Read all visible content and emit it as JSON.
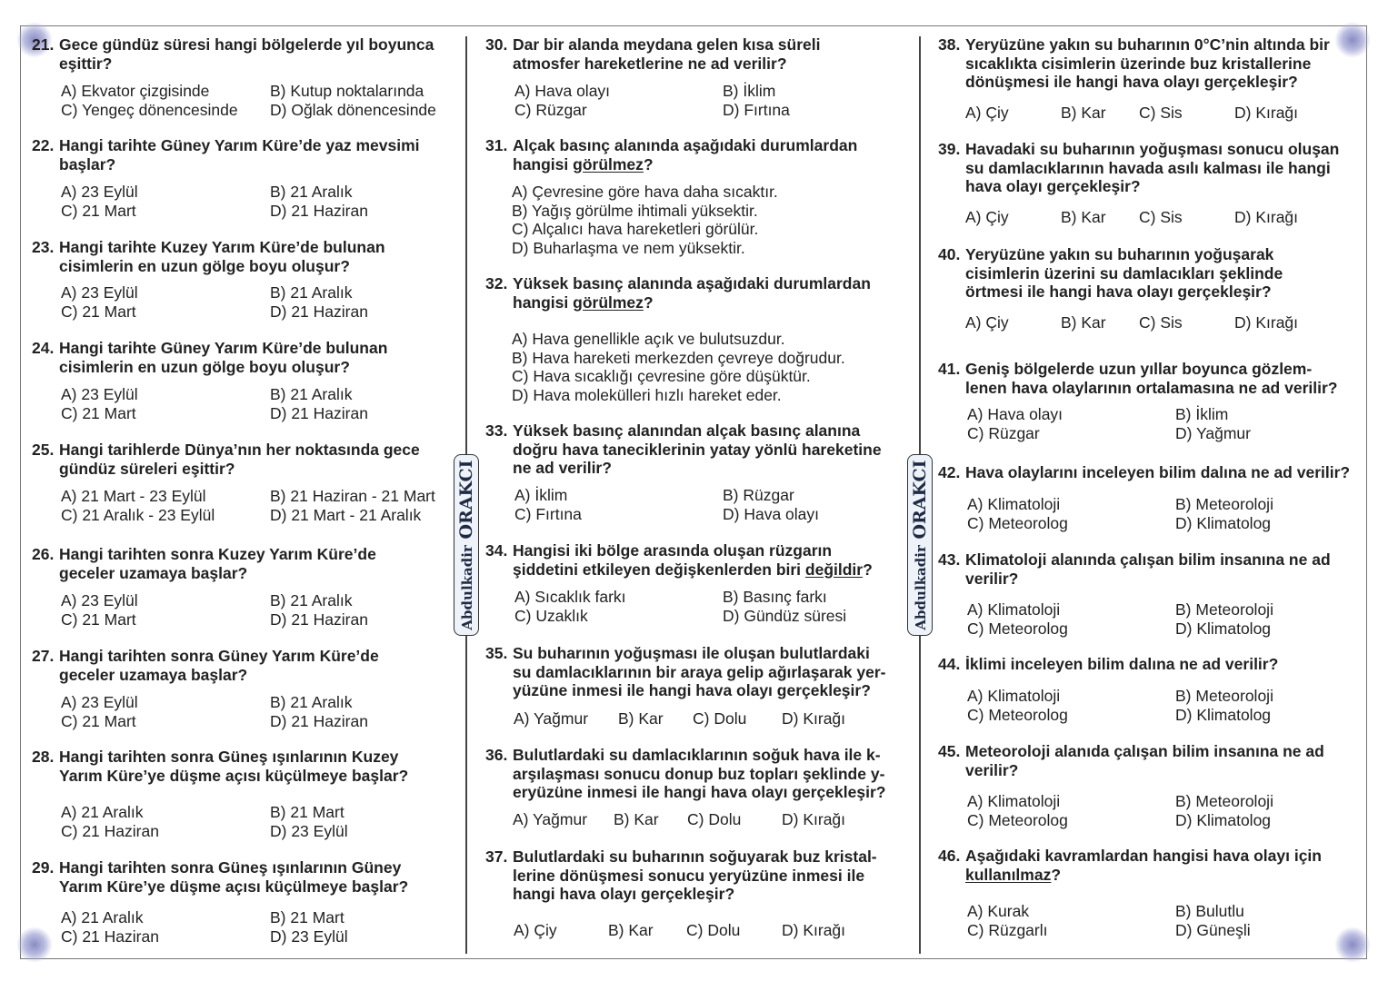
{
  "author": {
    "first": "Abdulkadir",
    "last": "ORAKCI"
  },
  "colors": {
    "text": "#222222",
    "badge_text": "#1f2a44",
    "badge_fill": "#eef3f9",
    "corner": "#6b6fb4"
  },
  "columns": [
    {
      "questions": [
        {
          "num": "21.",
          "lines": [
            "Gece gündüz süresi hangi bölgelerde yıl boyunca",
            "eşittir?"
          ],
          "options": [
            "A) Ekvator çizgisinde",
            "B) Kutup noktalarında",
            "C) Yengeç dönencesinde",
            "D) Oğlak dönencesinde"
          ]
        },
        {
          "num": "22.",
          "lines": [
            "Hangi tarihte Güney Yarım Küre’de yaz mevsimi",
            "başlar?"
          ],
          "options": [
            "A) 23 Eylül",
            "B) 21 Aralık",
            "C) 21 Mart",
            "D) 21 Haziran"
          ]
        },
        {
          "num": "23.",
          "lines": [
            "Hangi tarihte Kuzey Yarım Küre’de bulunan",
            "cisimlerin en uzun gölge boyu oluşur?"
          ],
          "options": [
            "A) 23 Eylül",
            "B) 21 Aralık",
            "C) 21 Mart",
            "D) 21 Haziran"
          ]
        },
        {
          "num": "24.",
          "lines": [
            "Hangi tarihte Güney Yarım Küre’de bulunan",
            "cisimlerin en uzun gölge boyu oluşur?"
          ],
          "options": [
            "A) 23 Eylül",
            "B) 21 Aralık",
            "C) 21 Mart",
            "D) 21 Haziran"
          ]
        },
        {
          "num": "25.",
          "lines": [
            "Hangi tarihlerde Dünya’nın her noktasında gece",
            "gündüz süreleri eşittir?"
          ],
          "options": [
            "A) 21 Mart - 23 Eylül",
            "B) 21 Haziran - 21 Mart",
            "C) 21 Aralık - 23 Eylül",
            "D) 21 Mart  - 21 Aralık"
          ]
        },
        {
          "num": "26.",
          "lines": [
            "Hangi tarihten sonra Kuzey Yarım Küre’de",
            "geceler uzamaya başlar?"
          ],
          "options": [
            "A) 23 Eylül",
            "B) 21 Aralık",
            "C) 21 Mart",
            "D) 21 Haziran"
          ]
        },
        {
          "num": "27.",
          "lines": [
            "Hangi tarihten sonra Güney Yarım Küre’de",
            "geceler uzamaya başlar?"
          ],
          "options": [
            "A) 23 Eylül",
            "B) 21 Aralık",
            "C) 21 Mart",
            "D) 21 Haziran"
          ]
        },
        {
          "num": "28.",
          "lines": [
            "Hangi tarihten sonra Güneş ışınlarının Kuzey",
            "Yarım Küre’ye düşme açısı küçülmeye başlar?"
          ],
          "options": [
            "A) 21 Aralık",
            "B) 21 Mart",
            "C) 21 Haziran",
            "D) 23 Eylül"
          ]
        },
        {
          "num": "29.",
          "lines": [
            "Hangi tarihten sonra Güneş ışınlarının Güney",
            "Yarım Küre’ye düşme açısı küçülmeye başlar?"
          ],
          "options": [
            "A) 21 Aralık",
            "B) 21 Mart",
            "C) 21 Haziran",
            "D) 23 Eylül"
          ]
        }
      ]
    },
    {
      "questions": [
        {
          "num": "30.",
          "lines": [
            "Dar bir alanda meydana gelen kısa süreli",
            "atmosfer hareketlerine ne ad verilir?"
          ],
          "options": [
            "A) Hava olayı",
            "B) İklim",
            "C) Rüzgar",
            "D) Fırtına"
          ]
        },
        {
          "num": "31.",
          "lines": [
            "Alçak basınç alanında aşağıdaki durumlardan",
            "hangisi |görülmez|?"
          ],
          "options": [
            "A) Çevresine göre hava daha sıcaktır.",
            "B) Yağış görülme ihtimali yüksektir.",
            "C) Alçalıcı hava hareketleri görülür.",
            "D) Buharlaşma ve nem yüksektir."
          ]
        },
        {
          "num": "32.",
          "lines": [
            "Yüksek basınç alanında aşağıdaki durumlardan",
            "hangisi |görülmez|?"
          ],
          "options": [
            "A) Hava genellikle açık ve bulutsuzdur.",
            "B) Hava hareketi merkezden çevreye doğrudur.",
            "C) Hava sıcaklığı çevresine göre düşüktür.",
            "D) Hava molekülleri hızlı hareket eder."
          ]
        },
        {
          "num": "33.",
          "lines": [
            "Yüksek basınç alanından alçak basınç alanına",
            "doğru hava taneciklerinin yatay yönlü hareketine",
            "ne ad verilir?"
          ],
          "options": [
            "A) İklim",
            "B) Rüzgar",
            "C) Fırtına",
            "D) Hava olayı"
          ]
        },
        {
          "num": "34.",
          "lines": [
            "Hangisi iki bölge arasında oluşan rüzgarın",
            "şiddetini etkileyen değişkenlerden biri |değildir|?"
          ],
          "options": [
            "A) Sıcaklık farkı",
            "B) Basınç farkı",
            "C) Uzaklık",
            "D) Gündüz süresi"
          ]
        },
        {
          "num": "35.",
          "lines": [
            "Su buharının yoğuşması ile oluşan bulutlardaki",
            "su damlacıklarının bir araya gelip ağırlaşarak yer-",
            "yüzüne inmesi ile hangi hava olayı gerçekleşir?"
          ],
          "options": [
            "A) Yağmur",
            "B) Kar",
            "C) Dolu",
            "D) Kırağı"
          ]
        },
        {
          "num": "36.",
          "lines": [
            "Bulutlardaki su damlacıklarının soğuk hava ile k-",
            "arşılaşması sonucu donup buz topları şeklinde y-",
            "eryüzüne inmesi ile hangi hava olayı gerçekleşir?"
          ],
          "options": [
            "A) Yağmur",
            "B) Kar",
            "C) Dolu",
            "D) Kırağı"
          ]
        },
        {
          "num": "37.",
          "lines": [
            "Bulutlardaki su buharının soğuyarak buz kristal-",
            "lerine dönüşmesi sonucu yeryüzüne inmesi ile",
            "hangi hava olayı gerçekleşir?"
          ],
          "options": [
            "A) Çiy",
            "B) Kar",
            "C) Dolu",
            "D) Kırağı"
          ]
        }
      ]
    },
    {
      "questions": [
        {
          "num": "38.",
          "lines": [
            "Yeryüzüne yakın su buharının 0°C’nin altında bir",
            "sıcaklıkta cisimlerin üzerinde buz kristallerine",
            "dönüşmesi ile hangi hava olayı gerçekleşir?"
          ],
          "options": [
            "A) Çiy",
            "B) Kar",
            "C) Sis",
            "D) Kırağı"
          ]
        },
        {
          "num": "39.",
          "lines": [
            "Havadaki su buharının yoğuşması sonucu oluşan",
            "su damlacıklarının havada asılı kalması ile hangi",
            "hava olayı gerçekleşir?"
          ],
          "options": [
            "A) Çiy",
            "B) Kar",
            "C) Sis",
            "D) Kırağı"
          ]
        },
        {
          "num": "40.",
          "lines": [
            "Yeryüzüne yakın su buharının yoğuşarak",
            "cisimlerin üzerini su damlacıkları şeklinde",
            "örtmesi ile hangi hava olayı gerçekleşir?"
          ],
          "options": [
            "A) Çiy",
            "B) Kar",
            "C) Sis",
            "D) Kırağı"
          ]
        },
        {
          "num": "41.",
          "lines": [
            "Geniş bölgelerde uzun yıllar boyunca gözlem-",
            "lenen hava olaylarının ortalamasına ne ad verilir?"
          ],
          "options": [
            "A) Hava olayı",
            "B) İklim",
            "C) Rüzgar",
            "D) Yağmur"
          ]
        },
        {
          "num": "42.",
          "lines": [
            "Hava olaylarını inceleyen bilim dalına ne ad verilir?"
          ],
          "options": [
            "A) Klimatoloji",
            "B) Meteoroloji",
            "C) Meteorolog",
            "D) Klimatolog"
          ]
        },
        {
          "num": "43.",
          "lines": [
            "Klimatoloji alanında çalışan bilim insanına ne ad",
            "verilir?"
          ],
          "options": [
            "A) Klimatoloji",
            "B) Meteoroloji",
            "C) Meteorolog",
            "D) Klimatolog"
          ]
        },
        {
          "num": "44.",
          "lines": [
            "İklimi inceleyen bilim dalına ne ad verilir?"
          ],
          "options": [
            "A) Klimatoloji",
            "B) Meteoroloji",
            "C) Meteorolog",
            "D) Klimatolog"
          ]
        },
        {
          "num": "45.",
          "lines": [
            "Meteoroloji alanıda çalışan bilim insanına ne ad",
            "verilir?"
          ],
          "options": [
            "A) Klimatoloji",
            "B) Meteoroloji",
            "C) Meteorolog",
            "D) Klimatolog"
          ]
        },
        {
          "num": "46.",
          "lines": [
            "Aşağıdaki kavramlardan hangisi hava olayı için",
            "|kullanılmaz|?"
          ],
          "options": [
            "A) Kurak",
            "B) Bulutlu",
            "C) Rüzgarlı",
            "D) Güneşli"
          ]
        }
      ]
    }
  ]
}
